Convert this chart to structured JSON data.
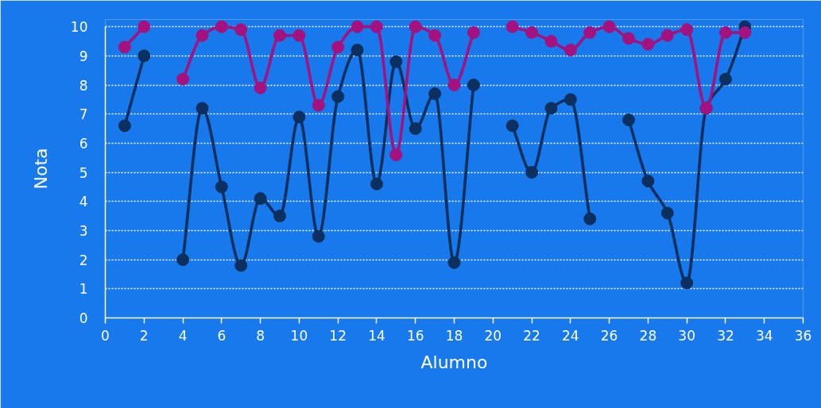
{
  "chart_data": {
    "type": "line",
    "xlabel": "Alumno",
    "ylabel": "Nota",
    "x": [
      1,
      2,
      3,
      4,
      5,
      6,
      7,
      8,
      9,
      10,
      11,
      12,
      13,
      14,
      15,
      16,
      17,
      18,
      19,
      20,
      21,
      22,
      23,
      24,
      25,
      26,
      27,
      28,
      29,
      30,
      31,
      32,
      33
    ],
    "series": [
      {
        "color": "#0b2f5e",
        "values": [
          6.6,
          9.0,
          null,
          2.0,
          7.2,
          4.5,
          1.8,
          4.1,
          3.5,
          6.9,
          2.8,
          7.6,
          9.2,
          4.6,
          8.8,
          6.5,
          7.7,
          1.9,
          8.0,
          null,
          6.6,
          5.0,
          7.2,
          7.5,
          3.4,
          null,
          6.8,
          4.7,
          3.6,
          1.2,
          7.2,
          8.2,
          10.0
        ]
      },
      {
        "color": "#a4127f",
        "values": [
          9.3,
          10.0,
          null,
          8.2,
          9.7,
          10.0,
          9.9,
          7.9,
          9.7,
          9.7,
          7.3,
          9.3,
          10.0,
          10.0,
          5.6,
          10.0,
          9.7,
          8.0,
          9.8,
          null,
          10.0,
          9.8,
          9.5,
          9.2,
          9.8,
          10.0,
          9.6,
          9.4,
          9.7,
          9.9,
          7.2,
          9.8,
          9.8
        ]
      }
    ],
    "xlim": [
      0,
      36
    ],
    "ylim": [
      0,
      10
    ],
    "xticks": [
      0,
      2,
      4,
      6,
      8,
      10,
      12,
      14,
      16,
      18,
      20,
      22,
      24,
      26,
      28,
      30,
      32,
      34,
      36
    ],
    "yticks": [
      0,
      1,
      2,
      3,
      4,
      5,
      6,
      7,
      8,
      9,
      10
    ],
    "grid": "y",
    "marker": "circle",
    "line_style": "solid"
  }
}
